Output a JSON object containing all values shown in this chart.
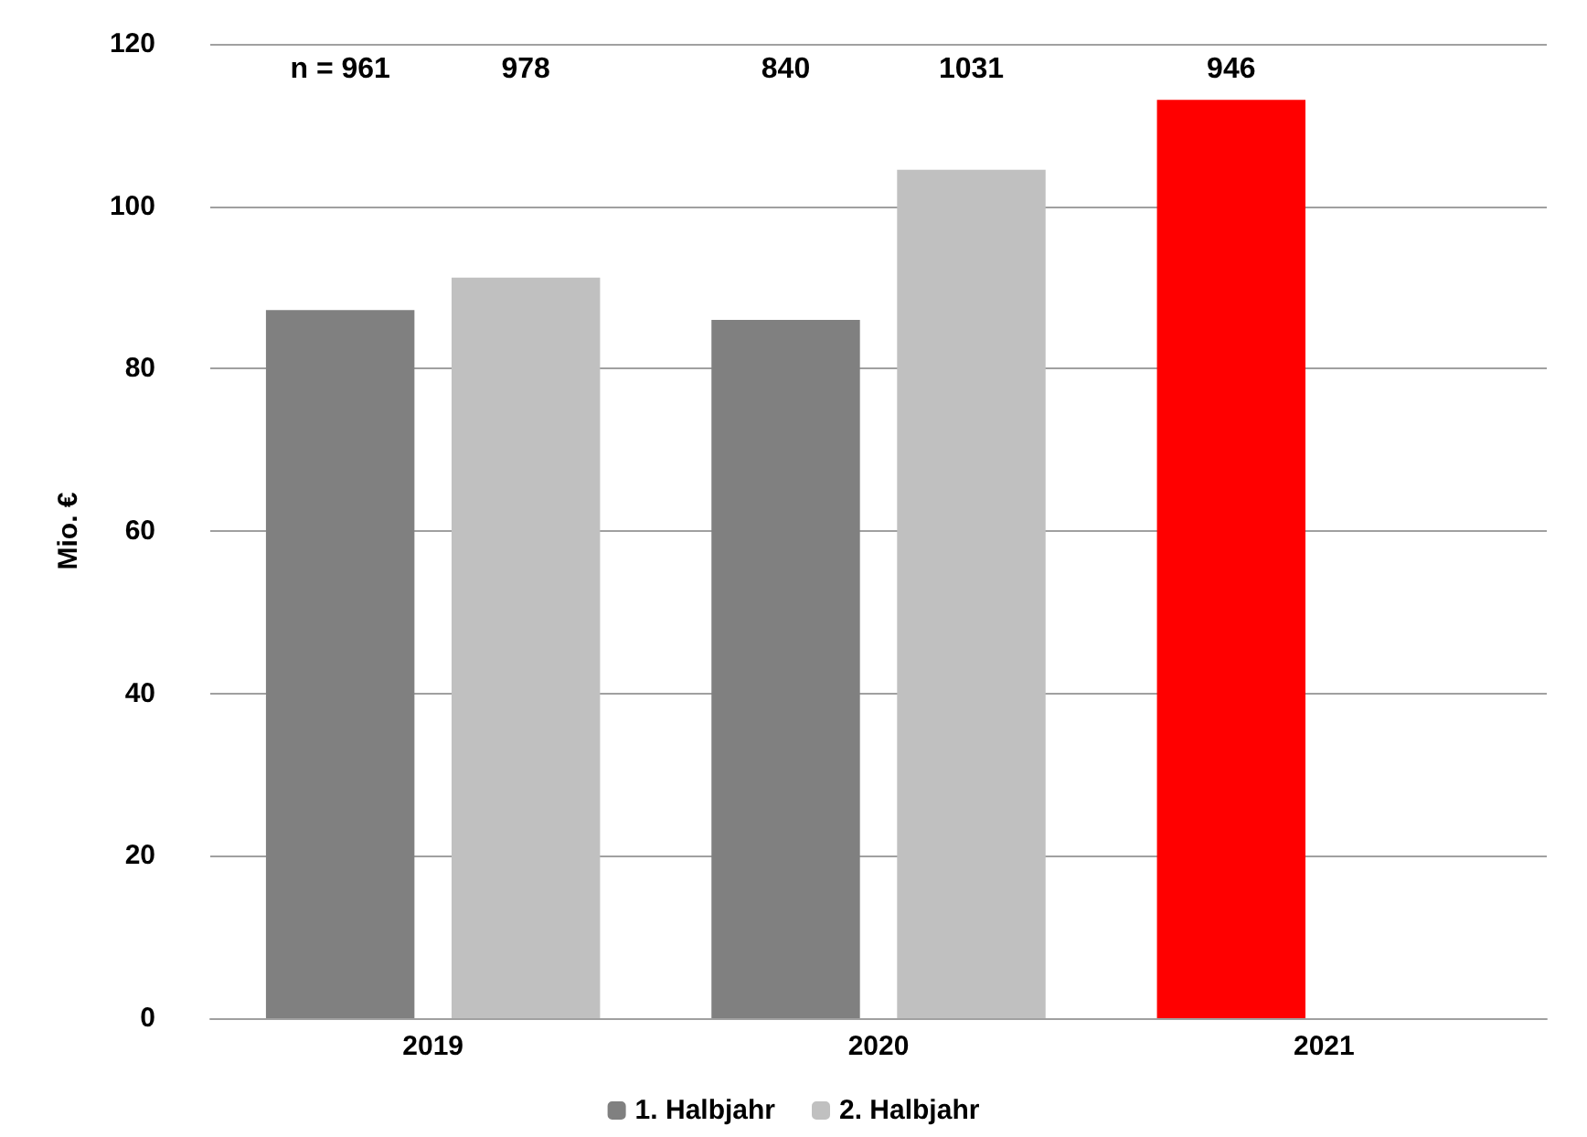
{
  "chart_data": {
    "type": "bar",
    "ylabel": "Mio. €",
    "categories": [
      "2019",
      "2020",
      "2021"
    ],
    "series": [
      {
        "name": "1. Halbjahr",
        "color": "#808080",
        "colors": [
          "#808080",
          "#808080",
          "#ff0000"
        ],
        "values": [
          87.2,
          86.0,
          113.1
        ]
      },
      {
        "name": "2. Halbjahr",
        "color": "#c0c0c0",
        "values": [
          91.2,
          104.5,
          null
        ]
      }
    ],
    "annotations": [
      "n = 961",
      "978",
      "840",
      "1031",
      "946"
    ],
    "ylim": [
      0,
      120
    ],
    "yticks": [
      0,
      20,
      40,
      60,
      80,
      100,
      120
    ],
    "grid": "y",
    "legend": "bottom"
  }
}
